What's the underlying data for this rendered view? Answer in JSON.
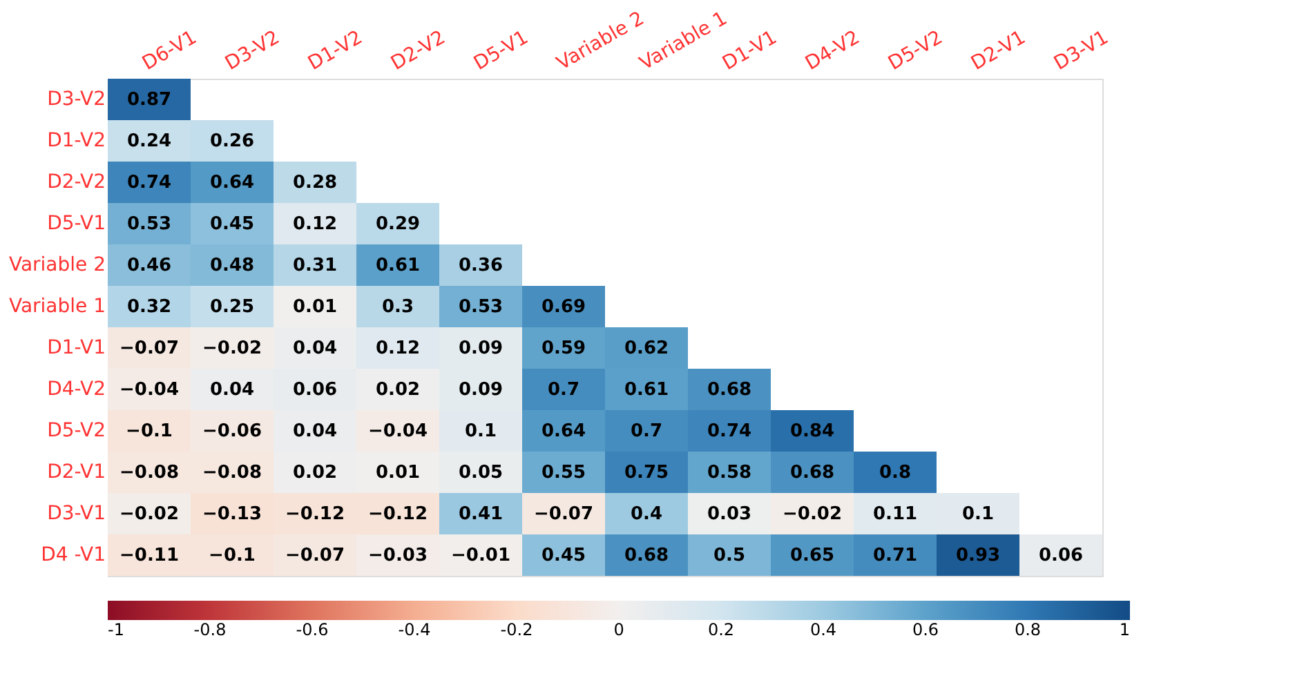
{
  "chart_data": {
    "type": "heatmap",
    "categories": [
      "D6-V1",
      "D3-V2",
      "D1-V2",
      "D2-V2",
      "D5-V1",
      "Variable 2",
      "Variable 1",
      "D1-V1",
      "D4-V2",
      "D5-V2",
      "D2-V1",
      "D3-V1"
    ],
    "y_categories": [
      "D3-V2",
      "D1-V2",
      "D2-V2",
      "D5-V1",
      "Variable 2",
      "Variable 1",
      "D1-V1",
      "D4-V2",
      "D5-V2",
      "D2-V1",
      "D3-V1",
      "D4 -V1"
    ],
    "cells": [
      [
        0.87,
        null,
        null,
        null,
        null,
        null,
        null,
        null,
        null,
        null,
        null,
        null
      ],
      [
        0.24,
        0.26,
        null,
        null,
        null,
        null,
        null,
        null,
        null,
        null,
        null,
        null
      ],
      [
        0.74,
        0.64,
        0.28,
        null,
        null,
        null,
        null,
        null,
        null,
        null,
        null,
        null
      ],
      [
        0.53,
        0.45,
        0.12,
        0.29,
        null,
        null,
        null,
        null,
        null,
        null,
        null,
        null
      ],
      [
        0.46,
        0.48,
        0.31,
        0.61,
        0.36,
        null,
        null,
        null,
        null,
        null,
        null,
        null
      ],
      [
        0.32,
        0.25,
        0.01,
        0.3,
        0.53,
        0.69,
        null,
        null,
        null,
        null,
        null,
        null
      ],
      [
        -0.07,
        -0.02,
        0.04,
        0.12,
        0.09,
        0.59,
        0.62,
        null,
        null,
        null,
        null,
        null
      ],
      [
        -0.04,
        0.04,
        0.06,
        0.02,
        0.09,
        0.7,
        0.61,
        0.68,
        null,
        null,
        null,
        null
      ],
      [
        -0.1,
        -0.06,
        0.04,
        -0.04,
        0.1,
        0.64,
        0.7,
        0.74,
        0.84,
        null,
        null,
        null
      ],
      [
        -0.08,
        -0.08,
        0.02,
        0.01,
        0.05,
        0.55,
        0.75,
        0.58,
        0.68,
        0.8,
        null,
        null
      ],
      [
        -0.02,
        -0.13,
        -0.12,
        -0.12,
        0.41,
        -0.07,
        0.4,
        0.03,
        -0.02,
        0.11,
        0.1,
        null
      ],
      [
        -0.11,
        -0.1,
        -0.07,
        -0.03,
        -0.01,
        0.45,
        0.68,
        0.5,
        0.65,
        0.71,
        0.93,
        0.06
      ]
    ],
    "clim": [
      -1,
      1
    ],
    "cticks": [
      -1,
      -0.8,
      -0.6,
      -0.4,
      -0.2,
      0,
      0.2,
      0.4,
      0.6,
      0.8,
      1
    ],
    "data_labels": true
  }
}
